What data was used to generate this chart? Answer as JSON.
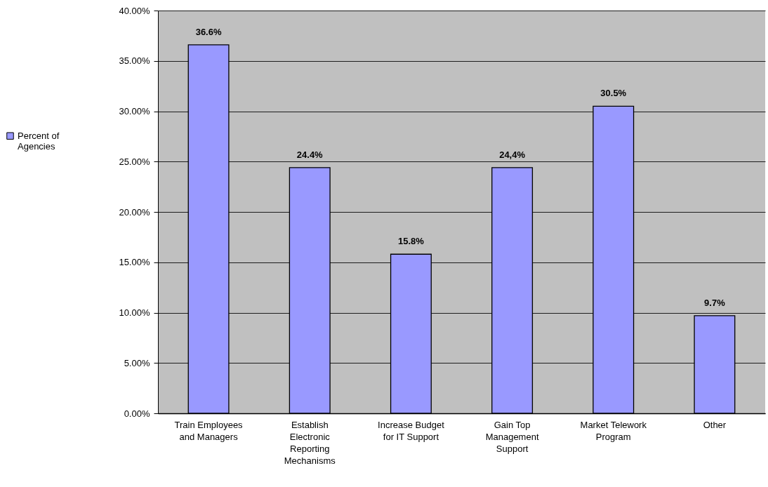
{
  "chart_data": {
    "type": "bar",
    "categories": [
      "Train Employees and Managers",
      "Establish Electronic Reporting Mechanisms",
      "Increase Budget for IT Support",
      "Gain Top Management Support",
      "Market Telework Program",
      "Other"
    ],
    "series": [
      {
        "name": "Percent of Agencies",
        "color": "#9999ff",
        "values": [
          36.6,
          24.4,
          15.8,
          24.4,
          30.5,
          9.7
        ],
        "value_labels": [
          "36.6%",
          "24.4%",
          "15.8%",
          "24,4%",
          "30.5%",
          "9.7%"
        ]
      }
    ],
    "ylim": [
      0,
      40
    ],
    "yticks": [
      {
        "value": 0,
        "label": "0.00%"
      },
      {
        "value": 5,
        "label": "5.00%"
      },
      {
        "value": 10,
        "label": "10.00%"
      },
      {
        "value": 15,
        "label": "15.00%"
      },
      {
        "value": 20,
        "label": "20.00%"
      },
      {
        "value": 25,
        "label": "25.00%"
      },
      {
        "value": 30,
        "label": "30.00%"
      },
      {
        "value": 35,
        "label": "35.00%"
      },
      {
        "value": 40,
        "label": "40.00%"
      }
    ],
    "grid": "y",
    "legend": "left"
  }
}
